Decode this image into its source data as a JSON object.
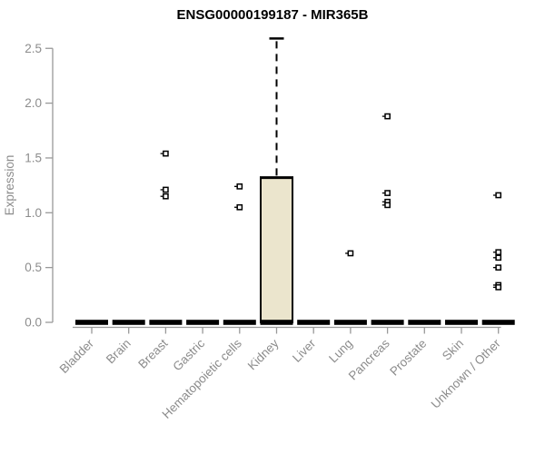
{
  "page": {
    "background": "#ffffff"
  },
  "chart_data": {
    "type": "boxplot",
    "title": "ENSG00000199187 - MIR365B",
    "xlabel": "",
    "ylabel": "Expression",
    "ylim": [
      0.0,
      2.5
    ],
    "yticks": [
      "0.0",
      "0.5",
      "1.0",
      "1.5",
      "2.0",
      "2.5"
    ],
    "grid": false,
    "legend": "none",
    "outlier_marker": "open-square-with-left-tick",
    "colors": {
      "box_fill": "#ebe5cd",
      "box_stroke": "#000000",
      "whisker": "#000000",
      "axis_line": "#999999",
      "tick_text": "#8c8c8c",
      "title_text": "#000000",
      "outlier": "#000000"
    },
    "categories": [
      "Bladder",
      "Brain",
      "Breast",
      "Gastric",
      "Hematopoietic cells",
      "Kidney",
      "Liver",
      "Lung",
      "Pancreas",
      "Prostate",
      "Skin",
      "Unknown / Other"
    ],
    "boxes": [
      {
        "category": "Bladder",
        "whisker_low": 0,
        "q1": 0,
        "median": 0,
        "q3": 0,
        "whisker_high": 0,
        "outliers": []
      },
      {
        "category": "Brain",
        "whisker_low": 0,
        "q1": 0,
        "median": 0,
        "q3": 0,
        "whisker_high": 0,
        "outliers": []
      },
      {
        "category": "Breast",
        "whisker_low": 0,
        "q1": 0,
        "median": 0,
        "q3": 0,
        "whisker_high": 0,
        "outliers": [
          1.54,
          1.21,
          1.15
        ]
      },
      {
        "category": "Gastric",
        "whisker_low": 0,
        "q1": 0,
        "median": 0,
        "q3": 0,
        "whisker_high": 0,
        "outliers": []
      },
      {
        "category": "Hematopoietic cells",
        "whisker_low": 0,
        "q1": 0,
        "median": 0,
        "q3": 0,
        "whisker_high": 0,
        "outliers": [
          1.24,
          1.05
        ]
      },
      {
        "category": "Kidney",
        "whisker_low": 0,
        "q1": 0,
        "median": 0,
        "q3": 1.32,
        "whisker_high": 2.59,
        "outliers": []
      },
      {
        "category": "Liver",
        "whisker_low": 0,
        "q1": 0,
        "median": 0,
        "q3": 0,
        "whisker_high": 0,
        "outliers": []
      },
      {
        "category": "Lung",
        "whisker_low": 0,
        "q1": 0,
        "median": 0,
        "q3": 0,
        "whisker_high": 0,
        "outliers": [
          0.63
        ]
      },
      {
        "category": "Pancreas",
        "whisker_low": 0,
        "q1": 0,
        "median": 0,
        "q3": 0,
        "whisker_high": 0,
        "outliers": [
          1.88,
          1.18,
          1.1,
          1.07
        ]
      },
      {
        "category": "Prostate",
        "whisker_low": 0,
        "q1": 0,
        "median": 0,
        "q3": 0,
        "whisker_high": 0,
        "outliers": []
      },
      {
        "category": "Skin",
        "whisker_low": 0,
        "q1": 0,
        "median": 0,
        "q3": 0,
        "whisker_high": 0,
        "outliers": []
      },
      {
        "category": "Unknown / Other",
        "whisker_low": 0,
        "q1": 0,
        "median": 0,
        "q3": 0,
        "whisker_high": 0,
        "outliers": [
          1.16,
          0.64,
          0.59,
          0.5,
          0.34,
          0.32
        ]
      }
    ]
  }
}
